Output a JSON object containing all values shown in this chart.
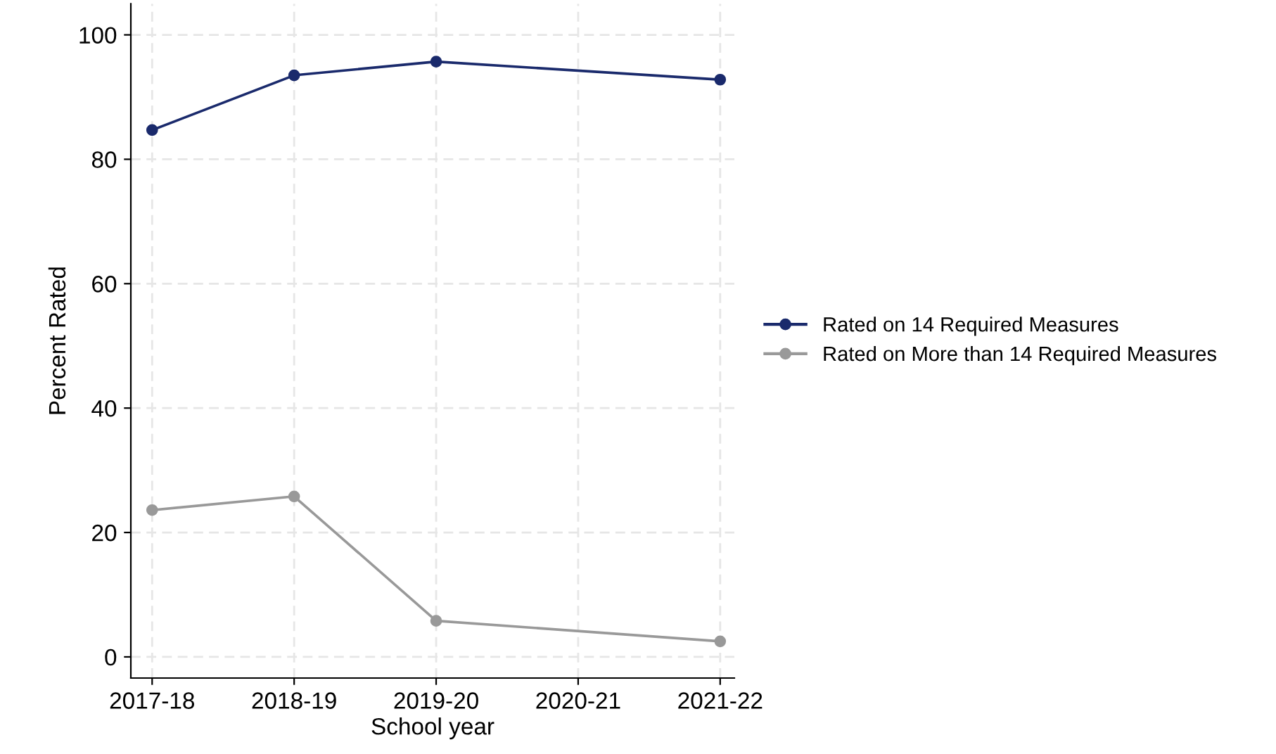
{
  "chart_data": {
    "type": "line",
    "xlabel": "School year",
    "ylabel": "Percent Rated",
    "categories": [
      "2017-18",
      "2018-19",
      "2019-20",
      "2020-21",
      "2021-22"
    ],
    "series": [
      {
        "name": "Rated on 14 Required Measures",
        "color": "#1a2a6c",
        "values": [
          84.7,
          93.5,
          95.7,
          null,
          92.8
        ]
      },
      {
        "name": "Rated on More than 14 Required Measures",
        "color": "#999999",
        "values": [
          23.6,
          25.8,
          5.8,
          null,
          2.5
        ]
      }
    ],
    "ylim": [
      -3.4,
      105
    ],
    "yticks": [
      0,
      20,
      40,
      60,
      80,
      100
    ],
    "grid": true,
    "legend": "right",
    "marker": "circle",
    "line_style": "solid"
  }
}
